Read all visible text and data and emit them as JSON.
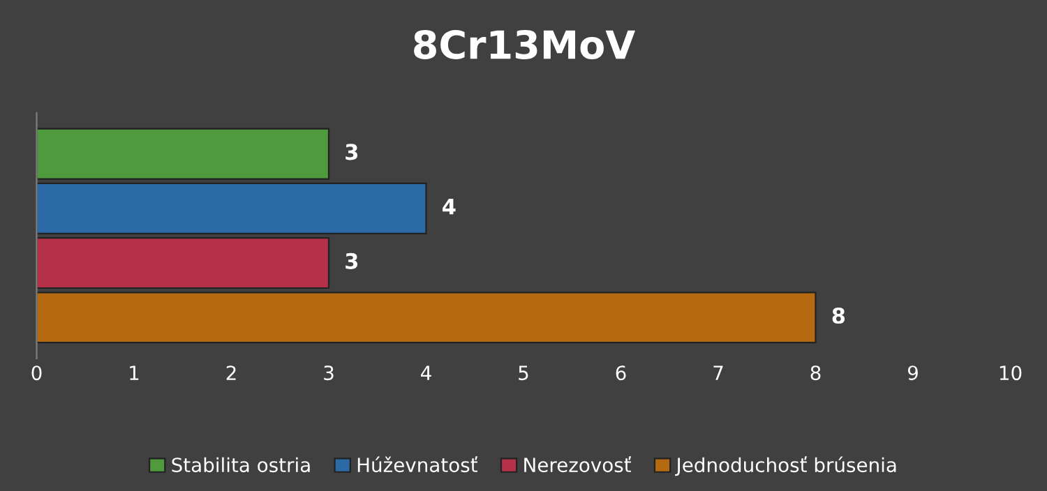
{
  "chart_data": {
    "type": "bar",
    "orientation": "horizontal",
    "title": "8Cr13MoV",
    "categories": [
      null
    ],
    "series": [
      {
        "name": "Stabilita ostria",
        "color": "#4f9a3c",
        "values": [
          3
        ]
      },
      {
        "name": "Húževnatosť",
        "color": "#2b6aa6",
        "values": [
          4
        ]
      },
      {
        "name": "Nerezovosť",
        "color": "#b5314a",
        "values": [
          3
        ]
      },
      {
        "name": "Jednoduchosť brúsenia",
        "color": "#b56a12",
        "values": [
          8
        ]
      }
    ],
    "xlim": [
      0,
      10
    ],
    "xticks": [
      0,
      1,
      2,
      3,
      4,
      5,
      6,
      7,
      8,
      9,
      10
    ],
    "data_labels": true,
    "grid": false,
    "legend": "bottom"
  }
}
